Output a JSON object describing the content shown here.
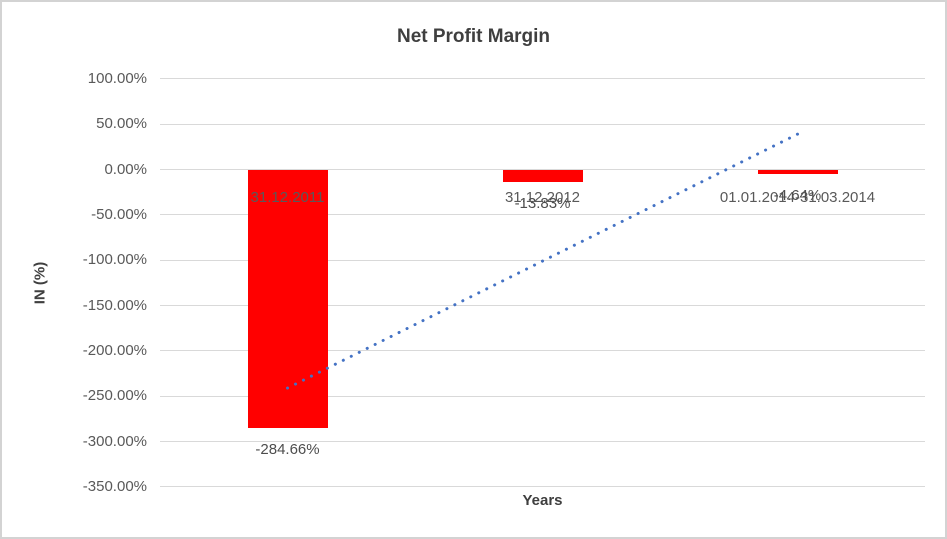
{
  "chart_data": {
    "type": "bar",
    "title": "Net Profit Margin",
    "xlabel": "Years",
    "ylabel": "IN (%)",
    "categories": [
      "31.12.2011",
      "31.12.2012",
      "01.01.2014-31.03.2014"
    ],
    "values": [
      -284.66,
      -13.83,
      -4.64
    ],
    "data_labels": [
      "-284.66%",
      "-13.83%",
      "-4.64%"
    ],
    "ylim": [
      -350,
      100
    ],
    "ytick_step": 50,
    "ytick_values": [
      100,
      50,
      0,
      -50,
      -100,
      -150,
      -200,
      -250,
      -300,
      -350
    ],
    "ytick_labels": [
      "100.00%",
      "50.00%",
      "0.00%",
      "-50.00%",
      "-100.00%",
      "-150.00%",
      "-200.00%",
      "-250.00%",
      "-300.00%",
      "-350.00%"
    ],
    "grid": true,
    "legend": "none",
    "bar_color": "#FF0000",
    "gridline_color": "#D9D9D9",
    "axis_text_color": "#595959",
    "title_color": "#3F3F3F",
    "trendline": {
      "type": "linear",
      "style": "dotted",
      "color": "#4472C4",
      "start_value": -241.05,
      "end_value": 38.97
    }
  }
}
